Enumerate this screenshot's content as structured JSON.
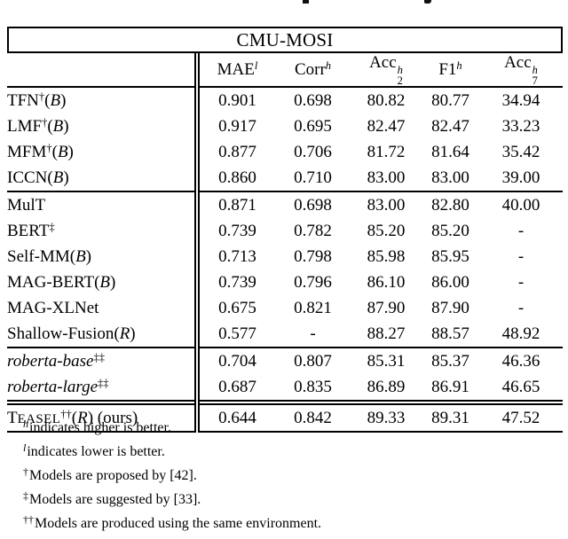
{
  "title": "CMU-MOSI",
  "table": {
    "columns": [
      {
        "base": "MAE",
        "sup": "l"
      },
      {
        "base": "Corr",
        "sup": "h"
      },
      {
        "base": "Acc",
        "sup": "h",
        "sub": "2"
      },
      {
        "base": "F1",
        "sup": "h"
      },
      {
        "base": "Acc",
        "sup": "h",
        "sub": "7"
      }
    ],
    "rows": [
      {
        "name": [
          {
            "t": "TFN"
          },
          {
            "t": "†",
            "c": "sup"
          },
          {
            "t": "("
          },
          {
            "t": "B",
            "c": "it"
          },
          {
            "t": ")"
          }
        ],
        "cells": [
          {
            "t": "0.901"
          },
          {
            "t": "0.698"
          },
          {
            "t": "80.82"
          },
          {
            "t": "80.77"
          },
          {
            "t": "34.94"
          }
        ]
      },
      {
        "name": [
          {
            "t": "LMF"
          },
          {
            "t": "†",
            "c": "sup"
          },
          {
            "t": "("
          },
          {
            "t": "B",
            "c": "it"
          },
          {
            "t": ")"
          }
        ],
        "cells": [
          {
            "t": "0.917"
          },
          {
            "t": "0.695"
          },
          {
            "t": "82.47"
          },
          {
            "t": "82.47"
          },
          {
            "t": "33.23"
          }
        ]
      },
      {
        "name": [
          {
            "t": "MFM"
          },
          {
            "t": "†",
            "c": "sup"
          },
          {
            "t": "("
          },
          {
            "t": "B",
            "c": "it"
          },
          {
            "t": ")"
          }
        ],
        "cells": [
          {
            "t": "0.877"
          },
          {
            "t": "0.706"
          },
          {
            "t": "81.72"
          },
          {
            "t": "81.64"
          },
          {
            "t": "35.42"
          }
        ]
      },
      {
        "name": [
          {
            "t": "ICCN"
          },
          {
            "t": "("
          },
          {
            "t": "B",
            "c": "it"
          },
          {
            "t": ")"
          }
        ],
        "cells": [
          {
            "t": "0.860"
          },
          {
            "t": "0.710"
          },
          {
            "t": "83.00"
          },
          {
            "t": "83.00"
          },
          {
            "t": "39.00"
          }
        ]
      },
      {
        "name": [
          {
            "t": "MulT"
          }
        ],
        "cells": [
          {
            "t": "0.871"
          },
          {
            "t": "0.698"
          },
          {
            "t": "83.00"
          },
          {
            "t": "82.80"
          },
          {
            "t": "40.00"
          }
        ]
      },
      {
        "name": [
          {
            "t": "BERT"
          },
          {
            "t": "‡",
            "c": "sup"
          }
        ],
        "cells": [
          {
            "t": "0.739"
          },
          {
            "t": "0.782"
          },
          {
            "t": "85.20"
          },
          {
            "t": "85.20"
          },
          {
            "t": "-"
          }
        ]
      },
      {
        "name": [
          {
            "t": "Self-MM"
          },
          {
            "t": "("
          },
          {
            "t": "B",
            "c": "it"
          },
          {
            "t": ")"
          }
        ],
        "cells": [
          {
            "t": "0.713"
          },
          {
            "t": "0.798"
          },
          {
            "t": "85.98"
          },
          {
            "t": "85.95"
          },
          {
            "t": "-"
          }
        ]
      },
      {
        "name": [
          {
            "t": "MAG-BERT"
          },
          {
            "t": "("
          },
          {
            "t": "B",
            "c": "it"
          },
          {
            "t": ")"
          }
        ],
        "cells": [
          {
            "t": "0.739"
          },
          {
            "t": "0.796"
          },
          {
            "t": "86.10"
          },
          {
            "t": "86.00"
          },
          {
            "t": "-"
          }
        ]
      },
      {
        "name": [
          {
            "t": "MAG-XLNet"
          }
        ],
        "cells": [
          {
            "t": "0.675"
          },
          {
            "t": "0.821"
          },
          {
            "t": "87.90"
          },
          {
            "t": "87.90"
          },
          {
            "t": "-"
          }
        ]
      },
      {
        "name": [
          {
            "t": "Shallow-Fusion"
          },
          {
            "t": "("
          },
          {
            "t": "R",
            "c": "it"
          },
          {
            "t": ")"
          }
        ],
        "cells": [
          {
            "t": "0.577",
            "b": true
          },
          {
            "t": "-"
          },
          {
            "t": "88.27"
          },
          {
            "t": "88.57"
          },
          {
            "t": "48.92",
            "b": true
          }
        ]
      },
      {
        "name": [
          {
            "t": "roberta-base",
            "c": "it"
          },
          {
            "t": "‡‡",
            "c": "sup"
          }
        ],
        "cells": [
          {
            "t": "0.704"
          },
          {
            "t": "0.807"
          },
          {
            "t": "85.31"
          },
          {
            "t": "85.37"
          },
          {
            "t": "46.36"
          }
        ]
      },
      {
        "name": [
          {
            "t": "roberta-large",
            "c": "it"
          },
          {
            "t": "‡‡",
            "c": "sup"
          }
        ],
        "cells": [
          {
            "t": "0.687"
          },
          {
            "t": "0.835"
          },
          {
            "t": "86.89"
          },
          {
            "t": "86.91"
          },
          {
            "t": "46.65"
          }
        ]
      },
      {
        "name": [
          {
            "t": "T"
          },
          {
            "t": "EASEL",
            "c": "sc"
          },
          {
            "t": "††",
            "c": "sup"
          },
          {
            "t": "("
          },
          {
            "t": "R",
            "c": "it"
          },
          {
            "t": ")"
          },
          {
            "t": " (ours)"
          }
        ],
        "cells": [
          {
            "t": "0.644"
          },
          {
            "t": "0.842",
            "b": true
          },
          {
            "t": "89.33",
            "b": true
          },
          {
            "t": "89.31",
            "b": true
          },
          {
            "t": "47.52"
          }
        ]
      }
    ]
  },
  "footnotes": [
    {
      "marker": "h",
      "text": "indicates higher is better."
    },
    {
      "marker": "l",
      "text": "indicates lower is better."
    },
    {
      "marker": "†",
      "text": "Models are proposed by [42]."
    },
    {
      "marker": "‡",
      "text": "Models are suggested by [33]."
    },
    {
      "marker": "††",
      "text": "Models are produced using the same environment."
    }
  ]
}
